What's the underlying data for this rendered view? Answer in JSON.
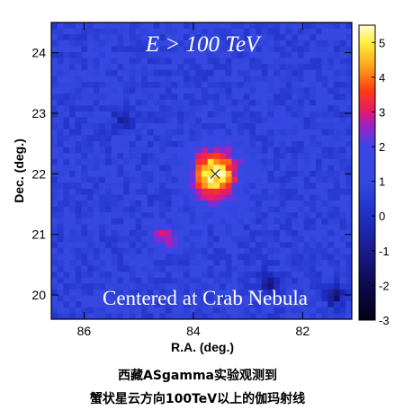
{
  "chart_data": {
    "type": "heatmap",
    "title": "E > 100 TeV",
    "annotation": "Centered at Crab Nebula",
    "xlabel": "R.A. (deg.)",
    "ylabel": "Dec. (deg.)",
    "xlim": [
      86.6,
      81.1
    ],
    "ylim": [
      19.6,
      24.5
    ],
    "x_axis_reversed": true,
    "xticks": [
      86,
      84,
      82
    ],
    "yticks": [
      20,
      21,
      22,
      23,
      24
    ],
    "colorbar": {
      "range": [
        -3,
        5.5
      ],
      "ticks": [
        -3,
        -2,
        -1,
        0,
        1,
        2,
        3,
        4,
        5
      ],
      "colors": [
        {
          "value": -3,
          "color": "#05001a"
        },
        {
          "value": -2,
          "color": "#0c0a4a"
        },
        {
          "value": -1,
          "color": "#1a1c8e"
        },
        {
          "value": 0,
          "color": "#1f2fc4"
        },
        {
          "value": 1,
          "color": "#3448e0"
        },
        {
          "value": 2,
          "color": "#3b46e6"
        },
        {
          "value": 2.6,
          "color": "#9b22c8"
        },
        {
          "value": 3,
          "color": "#e21b6e"
        },
        {
          "value": 3.6,
          "color": "#ff3a12"
        },
        {
          "value": 4.3,
          "color": "#ffa21a"
        },
        {
          "value": 5,
          "color": "#fff03a"
        },
        {
          "value": 5.5,
          "color": "#fffbd0"
        }
      ]
    },
    "source": {
      "ra": 83.6,
      "dec": 22.0,
      "marker": "x",
      "peak": 5.4,
      "sigma": 0.3
    },
    "background_level": 0.8,
    "hotspots": [
      {
        "ra": 84.6,
        "dec": 21.0,
        "value": 2.5
      },
      {
        "ra": 84.4,
        "dec": 20.9,
        "value": 2.4
      },
      {
        "ra": 82.6,
        "dec": 20.2,
        "value": -1.2
      },
      {
        "ra": 85.3,
        "dec": 22.9,
        "value": -0.4
      },
      {
        "ra": 81.4,
        "dec": 20.0,
        "value": -1.5
      }
    ]
  },
  "captions": {
    "line1": "西藏ASgamma实验观测到",
    "line2": "蟹状星云方向100TeV以上的伽玛射线"
  }
}
